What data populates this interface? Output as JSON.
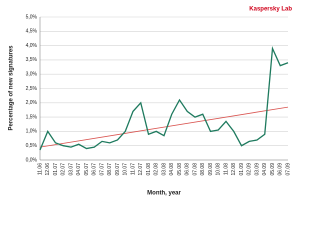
{
  "brand": "Kaspersky Lab",
  "chart_data": {
    "type": "line",
    "y_label": "Percentage of new signatures",
    "x_label": "Month, year",
    "categories": [
      "11.06",
      "12.06",
      "01.07",
      "02.07",
      "03.07",
      "04.07",
      "05.07",
      "06.07",
      "07.07",
      "08.07",
      "09.07",
      "10.07",
      "11.07",
      "12.07",
      "01.08",
      "02.08",
      "03.08",
      "04.08",
      "05.08",
      "06.08",
      "07.08",
      "08.08",
      "09.08",
      "10.08",
      "11.08",
      "12.08",
      "01.09",
      "02.09",
      "03.09",
      "04.09",
      "05.09",
      "06.09",
      "07.09"
    ],
    "series": [
      {
        "color": "#1e7a5e",
        "values": [
          0.35,
          1.0,
          0.6,
          0.5,
          0.45,
          0.55,
          0.4,
          0.45,
          0.65,
          0.6,
          0.7,
          1.0,
          1.7,
          2.0,
          0.9,
          1.0,
          0.85,
          1.6,
          2.1,
          1.7,
          1.5,
          1.6,
          1.0,
          1.05,
          1.35,
          1.0,
          0.5,
          0.65,
          0.7,
          0.9,
          3.9,
          3.3,
          3.4
        ]
      }
    ],
    "trend": {
      "color": "#d9534f",
      "values": [
        0.45,
        1.85
      ]
    },
    "ylim": [
      0,
      5
    ],
    "yticks": [
      {
        "value": 0,
        "label": "0,0%"
      },
      {
        "value": 0.5,
        "label": "0,5%"
      },
      {
        "value": 1,
        "label": "1,0%"
      },
      {
        "value": 1.5,
        "label": "1,5%"
      },
      {
        "value": 2,
        "label": "2,0%"
      },
      {
        "value": 2.5,
        "label": "2,5%"
      },
      {
        "value": 3,
        "label": "3,0%"
      },
      {
        "value": 3.5,
        "label": "3,5%"
      },
      {
        "value": 4,
        "label": "4,0%"
      },
      {
        "value": 4.5,
        "label": "4,5%"
      },
      {
        "value": 5,
        "label": "5,0%"
      }
    ],
    "grid": true
  }
}
